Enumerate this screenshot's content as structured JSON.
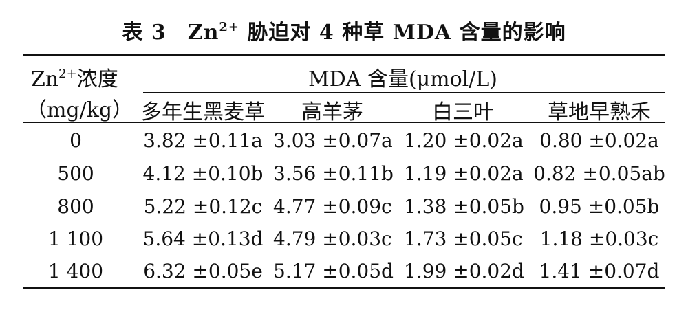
{
  "table": {
    "title_prefix": "表 3　Zn",
    "title_sup": "2+",
    "title_suffix": "胁迫对 4 种草 MDA 含量的影响",
    "row_header_line1_prefix": "Zn",
    "row_header_line1_sup": "2+",
    "row_header_line1_suffix": "浓度",
    "row_header_line2": "（mg/kg）",
    "group_header": "MDA 含量(μmol/L)",
    "columns": [
      "多年生黑麦草",
      "高羊茅",
      "白三叶",
      "草地早熟禾"
    ],
    "rows": [
      {
        "conc": "0",
        "cells": [
          "3.82 ±0.11a",
          "3.03 ±0.07a",
          "1.20 ±0.02a",
          "0.80 ±0.02a"
        ]
      },
      {
        "conc": "500",
        "cells": [
          "4.12 ±0.10b",
          "3.56 ±0.11b",
          "1.19 ±0.02a",
          "0.82 ±0.05ab"
        ]
      },
      {
        "conc": "800",
        "cells": [
          "5.22 ±0.12c",
          "4.77 ±0.09c",
          "1.38 ±0.05b",
          "0.95 ±0.05b"
        ]
      },
      {
        "conc": "1 100",
        "cells": [
          "5.64 ±0.13d",
          "4.79 ±0.03c",
          "1.73 ±0.05c",
          "1.18 ±0.03c"
        ]
      },
      {
        "conc": "1 400",
        "cells": [
          "6.32 ±0.05e",
          "5.17 ±0.05d",
          "1.99 ±0.02d",
          "1.41 ±0.07d"
        ]
      }
    ]
  }
}
